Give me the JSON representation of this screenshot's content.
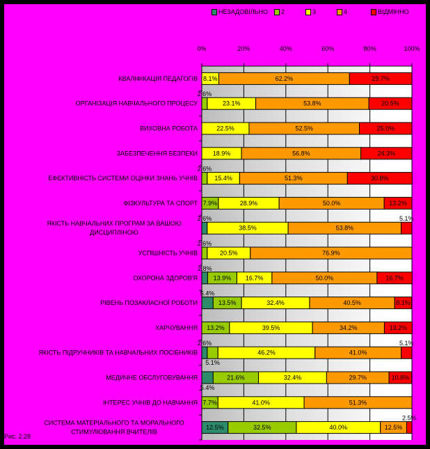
{
  "chart_data": {
    "type": "bar",
    "stacked": true,
    "orientation": "horizontal",
    "xlim": [
      0,
      100
    ],
    "x_ticks": [
      "0%",
      "20%",
      "40%",
      "60%",
      "80%",
      "100%"
    ],
    "legend_position": "top",
    "series": [
      {
        "name": "НЕЗАДОВІЛЬНО",
        "color": "#2e8b6a"
      },
      {
        "name": "2",
        "color": "#99cc00"
      },
      {
        "name": "3",
        "color": "#ffff00"
      },
      {
        "name": "4",
        "color": "#ff9900"
      },
      {
        "name": "ВІДМІННО",
        "color": "#ff0000"
      }
    ],
    "categories": [
      {
        "label": [
          "КВАЛІФІКАЦІЯ ПЕДАГОГІВ"
        ],
        "values": [
          0,
          0,
          8.1,
          62.2,
          29.7
        ]
      },
      {
        "label": [
          "ОРГАНІЗАЦІЯ НАВЧАЛЬНОГО ПРОЦЕСУ"
        ],
        "values": [
          0,
          2.6,
          23.1,
          53.8,
          20.5
        ]
      },
      {
        "label": [
          "ВИХОВНА РОБОТА"
        ],
        "values": [
          0,
          0,
          22.5,
          52.5,
          25.0
        ]
      },
      {
        "label": [
          "ЗАБЕЗПЕЧЕННЯ БЕЗПЕКИ"
        ],
        "values": [
          0,
          0,
          18.9,
          56.8,
          24.3
        ]
      },
      {
        "label": [
          "ЕФЕКТИВНІСТЬ СИСТЕМИ ОЦІНКИ ЗНАНЬ УЧНІВ"
        ],
        "values": [
          0,
          2.6,
          15.4,
          51.3,
          30.8
        ]
      },
      {
        "label": [
          "ФІЗКУЛЬТУРА ТА СПОРТ"
        ],
        "values": [
          0,
          7.9,
          28.9,
          50.0,
          13.2
        ]
      },
      {
        "label": [
          "ЯКІСТЬ НАВЧАЛЬНИХ ПРОГРАМ ЗА ВАШОЮ",
          "ДИСЦИПЛІНОЮ"
        ],
        "values": [
          2.6,
          0,
          38.5,
          53.8,
          5.1
        ]
      },
      {
        "label": [
          "УСПІШНІСТЬ УЧНІВ"
        ],
        "values": [
          0,
          2.6,
          20.5,
          76.9,
          0
        ]
      },
      {
        "label": [
          "ОХОРОНА ЗДОРОВ'Я"
        ],
        "values": [
          2.8,
          13.9,
          16.7,
          50.0,
          16.7
        ]
      },
      {
        "label": [
          "РІВЕНЬ ПОЗАКЛАСНОЇ РОБОТИ"
        ],
        "values": [
          5.4,
          13.5,
          32.4,
          40.5,
          8.1
        ]
      },
      {
        "label": [
          "ХАРЧУВАННЯ"
        ],
        "values": [
          0,
          13.2,
          39.5,
          34.2,
          13.2
        ]
      },
      {
        "label": [
          "ЯКІСТЬ ПІДРУЧНИКІВ ТА НАВЧАЛЬНИХ ПОСІБНИКІВ"
        ],
        "values": [
          2.6,
          5.1,
          46.2,
          41.0,
          5.1
        ]
      },
      {
        "label": [
          "МЕДИЧНЕ ОБСЛУГОВУВАННЯ"
        ],
        "values": [
          5.4,
          21.6,
          32.4,
          29.7,
          10.8
        ]
      },
      {
        "label": [
          "ІНТЕРЕС УЧНІВ ДО НАВЧАННЯ"
        ],
        "values": [
          0,
          7.7,
          41.0,
          51.3,
          0
        ]
      },
      {
        "label": [
          "СИСТЕМА МАТЕРІАЛЬНОГО ТА МОРАЛЬНОГО",
          "СТИМУЛЮВАННЯ ВЧИТЕЛІВ"
        ],
        "values": [
          12.5,
          32.5,
          40.0,
          12.5,
          2.5
        ]
      }
    ]
  },
  "caption": "Рис. 2.28"
}
